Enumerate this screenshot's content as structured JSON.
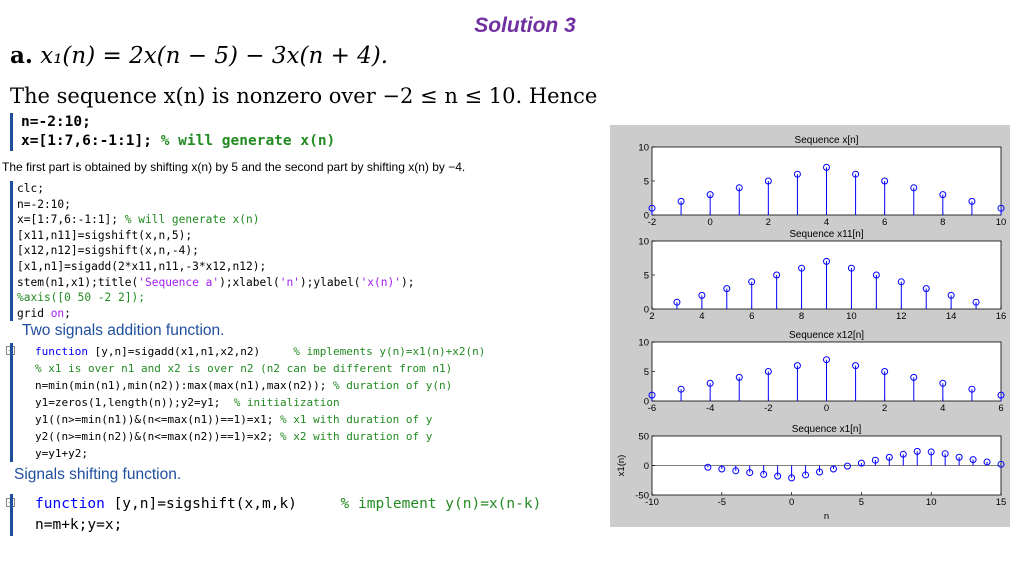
{
  "slide": {
    "title": "Solution 3",
    "equation_label": "a.",
    "equation": "x₁(n) = 2x(n − 5) − 3x(n + 4).",
    "sequence_text": "The sequence x(n) is nonzero over −2 ≤ n ≤ 10. Hence",
    "caption": "The first part is obtained by shifting x(n) by 5 and the second part by shifting x(n) by −4.",
    "addition_label": "Two signals addition function.",
    "shifting_label": "Signals shifting function."
  },
  "code_block_1": [
    {
      "code": "n=-2:10;",
      "comment": ""
    },
    {
      "code": "x=[1:7,6:-1:1]; ",
      "comment": "% will generate x(n)"
    }
  ],
  "code_block_2": [
    {
      "code": "clc;",
      "comment": ""
    },
    {
      "code": "n=-2:10;",
      "comment": ""
    },
    {
      "code": "x=[1:7,6:-1:1]; ",
      "comment": "% will generate x(n)"
    },
    {
      "code": "[x11,n11]=sigshift(x,n,5);",
      "comment": ""
    },
    {
      "code": "[x12,n12]=sigshift(x,n,-4);",
      "comment": ""
    },
    {
      "code": "[x1,n1]=sigadd(2*x11,n11,-3*x12,n12);",
      "comment": ""
    },
    {
      "code": "stem(n1,x1);title(",
      "string": "'Sequence a'",
      "code2": ");xlabel(",
      "string2": "'n'",
      "code3": ");ylabel(",
      "string3": "'x(n)'",
      "code4": ");"
    },
    {
      "code": "",
      "comment": "%axis([0 50 -2 2]);"
    },
    {
      "code": "grid ",
      "string": "on",
      "code2": ";"
    }
  ],
  "code_block_3": [
    {
      "keyword": "function",
      "code": " [y,n]=sigadd(x1,n1,x2,n2)     ",
      "comment": "% implements y(n)=x1(n)+x2(n)"
    },
    {
      "keyword": "",
      "code": "",
      "comment": "% x1 is over n1 and x2 is over n2 (n2 can be different from n1)"
    },
    {
      "keyword": "",
      "code": "n=min(min(n1),min(n2)):max(max(n1),max(n2)); ",
      "comment": "% duration of y(n)"
    },
    {
      "keyword": "",
      "code": "y1=zeros(1,length(n));y2=y1;  ",
      "comment": "% initialization"
    },
    {
      "keyword": "",
      "code": "y1((n>=min(n1))&(n<=max(n1))==1)=x1; ",
      "comment": "% x1 with duration of y"
    },
    {
      "keyword": "",
      "code": "y2((n>=min(n2))&(n<=max(n2))==1)=x2; ",
      "comment": "% x2 with duration of y"
    },
    {
      "keyword": "",
      "code": "y=y1+y2;",
      "comment": ""
    }
  ],
  "code_block_4": [
    {
      "keyword": "function",
      "code": " [y,n]=sigshift(x,m,k)     ",
      "comment": "% implement y(n)=x(n-k)"
    },
    {
      "keyword": "",
      "code": "n=m+k;y=x;",
      "comment": ""
    }
  ],
  "chart_data": [
    {
      "type": "stem",
      "title": "Sequence x[n]",
      "x": [
        -2,
        -1,
        0,
        1,
        2,
        3,
        4,
        5,
        6,
        7,
        8,
        9,
        10
      ],
      "values": [
        1,
        2,
        3,
        4,
        5,
        6,
        7,
        6,
        5,
        4,
        3,
        2,
        1
      ],
      "xlim": [
        -2,
        10
      ],
      "ylim": [
        0,
        10
      ],
      "xticks": [
        -2,
        0,
        2,
        4,
        6,
        8,
        10
      ],
      "yticks": [
        0,
        5,
        10
      ],
      "xlabel": "",
      "ylabel": ""
    },
    {
      "type": "stem",
      "title": "Sequence x11[n]",
      "x": [
        3,
        4,
        5,
        6,
        7,
        8,
        9,
        10,
        11,
        12,
        13,
        14,
        15
      ],
      "values": [
        1,
        2,
        3,
        4,
        5,
        6,
        7,
        6,
        5,
        4,
        3,
        2,
        1
      ],
      "xlim": [
        2,
        16
      ],
      "ylim": [
        0,
        10
      ],
      "xticks": [
        2,
        4,
        6,
        8,
        10,
        12,
        14,
        16
      ],
      "yticks": [
        0,
        5,
        10
      ],
      "xlabel": "",
      "ylabel": ""
    },
    {
      "type": "stem",
      "title": "Sequence x12[n]",
      "x": [
        -6,
        -5,
        -4,
        -3,
        -2,
        -1,
        0,
        1,
        2,
        3,
        4,
        5,
        6
      ],
      "values": [
        1,
        2,
        3,
        4,
        5,
        6,
        7,
        6,
        5,
        4,
        3,
        2,
        1
      ],
      "xlim": [
        -6,
        6
      ],
      "ylim": [
        0,
        10
      ],
      "xticks": [
        -6,
        -4,
        -2,
        0,
        2,
        4,
        6
      ],
      "yticks": [
        0,
        5,
        10
      ],
      "xlabel": "",
      "ylabel": ""
    },
    {
      "type": "stem",
      "title": "Sequence x1[n]",
      "x": [
        -6,
        -5,
        -4,
        -3,
        -2,
        -1,
        0,
        1,
        2,
        3,
        4,
        5,
        6,
        7,
        8,
        9,
        10,
        11,
        12,
        13,
        14,
        15
      ],
      "values": [
        -3,
        -6,
        -9,
        -12,
        -15,
        -18,
        -21,
        -16,
        -11,
        -6,
        -1,
        4,
        9,
        14,
        19,
        24,
        23,
        20,
        14,
        10,
        6,
        2
      ],
      "xlim": [
        -10,
        15
      ],
      "ylim": [
        -50,
        50
      ],
      "xticks": [
        -10,
        -5,
        0,
        5,
        10,
        15
      ],
      "yticks": [
        -50,
        0,
        50
      ],
      "xlabel": "n",
      "ylabel": "x1(n)"
    }
  ],
  "colors": {
    "title": "#7030a0",
    "code_keyword": "#0000ff",
    "code_comment": "#228b22",
    "code_string": "#a020f0",
    "label_blue": "#1f4e9c",
    "stem": "#0000ff",
    "plot_background": "#cccccc"
  }
}
